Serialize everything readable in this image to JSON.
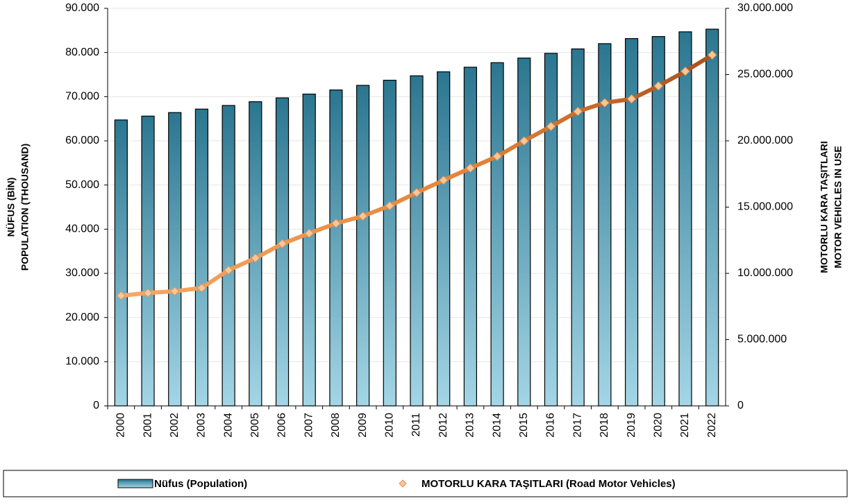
{
  "chart_data": {
    "type": "bar_line",
    "categories": [
      "2000",
      "2001",
      "2002",
      "2003",
      "2004",
      "2005",
      "2006",
      "2007",
      "2008",
      "2009",
      "2010",
      "2011",
      "2012",
      "2013",
      "2014",
      "2015",
      "2016",
      "2017",
      "2018",
      "2019",
      "2020",
      "2021",
      "2022"
    ],
    "series": [
      {
        "name": "Nüfus (Population)",
        "type": "bar",
        "color": "#3d8aa3",
        "values": [
          64729,
          65603,
          66401,
          67187,
          68010,
          68861,
          69730,
          70586,
          71517,
          72561,
          73723,
          74724,
          75627,
          76668,
          77696,
          78741,
          79815,
          80811,
          82004,
          83155,
          83615,
          84680,
          85280
        ]
      },
      {
        "name": "MOTORLU KARA TAŞITLARI (Road Motor Vehicles)",
        "type": "line",
        "axis": "y2",
        "color": "#e0823c",
        "values": [
          8320000,
          8520000,
          8650000,
          8900000,
          10240000,
          11150000,
          12230000,
          13020000,
          13770000,
          14320000,
          15100000,
          16090000,
          17030000,
          17940000,
          18830000,
          19990000,
          21090000,
          22220000,
          22870000,
          23160000,
          24140000,
          25250000,
          26480000
        ]
      }
    ],
    "ylabel": [
      "NÜFUS (BİN)",
      "POPULATION (THOUSAND)"
    ],
    "y2label": [
      "MOTORLU KARA TAŞITLARI",
      "MOTOR VEHICLES IN USE"
    ],
    "ylim": [
      0,
      90000
    ],
    "yticks": [
      0,
      {
        "value": 10000,
        "label": "10.000"
      },
      {
        "value": 20000,
        "label": "20.000"
      },
      {
        "value": 30000,
        "label": "30.000"
      },
      {
        "value": 40000,
        "label": "40.000"
      },
      {
        "value": 50000,
        "label": "50.000"
      },
      {
        "value": 60000,
        "label": "60.000"
      },
      {
        "value": 70000,
        "label": "70.000"
      },
      {
        "value": 80000,
        "label": "80.000"
      },
      {
        "value": 90000,
        "label": "90.000"
      }
    ],
    "y2lim": [
      0,
      30000000
    ],
    "y2ticks": [
      0,
      {
        "value": 5000000,
        "label": "5.000.000"
      },
      {
        "value": 10000000,
        "label": "10.000.000"
      },
      {
        "value": 15000000,
        "label": "15.000.000"
      },
      {
        "value": 20000000,
        "label": "20.000.000"
      },
      {
        "value": 25000000,
        "label": "25.000.000"
      },
      {
        "value": 30000000,
        "label": "30.000.000"
      }
    ],
    "grid": true
  }
}
